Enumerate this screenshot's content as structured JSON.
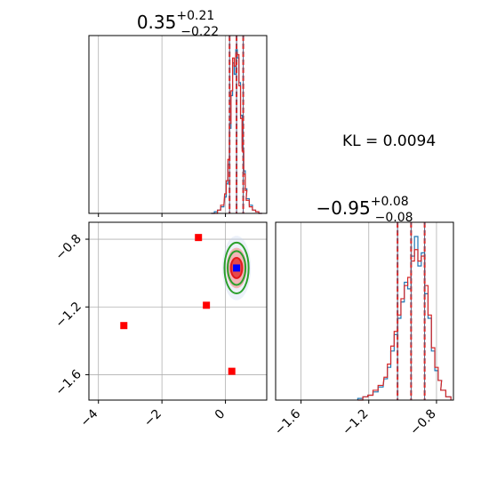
{
  "chart_data": {
    "type": "corner",
    "annotation": "KL = 0.0094",
    "colors": {
      "hist_blue": "#1f77b4",
      "hist_red": "#d62728",
      "contour_green": "#2ca02c",
      "contour_red": "#e31a1c",
      "contour_pink": "#f4a6a6",
      "truth_blue": "#0000ff",
      "prior_red": "#ff0000",
      "grid": "#b0b0b0"
    },
    "param1": {
      "title": {
        "median": "0.35",
        "plus": "+0.21",
        "minus": "−0.22"
      },
      "xlim": [
        -4.3,
        1.3
      ],
      "ticks": [
        -4,
        -2,
        0
      ],
      "tick_labels": [
        "−4",
        "−2",
        "0"
      ],
      "quantiles": [
        0.13,
        0.35,
        0.56
      ],
      "hist_centers": [
        -0.4,
        -0.3,
        -0.2,
        -0.1,
        0.0,
        0.05,
        0.1,
        0.15,
        0.2,
        0.25,
        0.3,
        0.35,
        0.4,
        0.45,
        0.5,
        0.55,
        0.6,
        0.65,
        0.7,
        0.8,
        0.9,
        1.0,
        1.1
      ],
      "hist_blue": [
        0.0,
        0.01,
        0.02,
        0.04,
        0.1,
        0.18,
        0.3,
        0.52,
        0.72,
        0.92,
        0.85,
        1.0,
        0.95,
        0.8,
        0.6,
        0.4,
        0.26,
        0.15,
        0.09,
        0.05,
        0.02,
        0.01,
        0.0
      ],
      "hist_red": [
        0.0,
        0.0,
        0.02,
        0.05,
        0.12,
        0.2,
        0.33,
        0.55,
        0.75,
        0.95,
        0.9,
        0.98,
        0.97,
        0.78,
        0.58,
        0.38,
        0.24,
        0.14,
        0.08,
        0.04,
        0.02,
        0.01,
        0.0
      ]
    },
    "param2": {
      "title": {
        "median": "−0.95",
        "plus": "+0.08",
        "minus": "−0.08"
      },
      "xlim": [
        -1.75,
        -0.7
      ],
      "ylim": [
        -1.75,
        -0.7
      ],
      "ticks": [
        -1.6,
        -1.2,
        -0.8
      ],
      "tick_labels": [
        "−1.6",
        "−1.2",
        "−0.8"
      ],
      "quantiles": [
        -1.03,
        -0.95,
        -0.87
      ],
      "hist_centers": [
        -1.25,
        -1.22,
        -1.19,
        -1.16,
        -1.13,
        -1.1,
        -1.08,
        -1.06,
        -1.04,
        -1.02,
        -1.0,
        -0.98,
        -0.96,
        -0.94,
        -0.92,
        -0.9,
        -0.88,
        -0.86,
        -0.84,
        -0.82,
        -0.8,
        -0.78,
        -0.76,
        -0.73
      ],
      "hist_blue": [
        0.01,
        0.02,
        0.03,
        0.05,
        0.08,
        0.13,
        0.2,
        0.3,
        0.4,
        0.5,
        0.6,
        0.72,
        0.68,
        0.88,
        1.0,
        0.82,
        0.9,
        0.65,
        0.5,
        0.3,
        0.18,
        0.12,
        0.06,
        0.02
      ],
      "hist_red": [
        0.0,
        0.02,
        0.03,
        0.06,
        0.09,
        0.14,
        0.22,
        0.33,
        0.42,
        0.52,
        0.62,
        0.7,
        0.75,
        0.85,
        0.92,
        0.85,
        0.88,
        0.7,
        0.52,
        0.32,
        0.2,
        0.12,
        0.06,
        0.02
      ]
    },
    "joint": {
      "truth": {
        "x": 0.35,
        "y": -0.97
      },
      "prior_points": [
        {
          "x": -0.85,
          "y": -0.79
        },
        {
          "x": -3.2,
          "y": -1.31
        },
        {
          "x": -0.6,
          "y": -1.19
        },
        {
          "x": 0.2,
          "y": -1.58
        }
      ],
      "contours": [
        {
          "level": "inner",
          "color": "contour_red",
          "rx": 0.18,
          "ry": 0.06
        },
        {
          "level": "mid",
          "color": "contour_green",
          "rx": 0.28,
          "ry": 0.1
        },
        {
          "level": "outer",
          "color": "contour_green",
          "rx": 0.38,
          "ry": 0.15
        }
      ],
      "center": {
        "x": 0.35,
        "y": -0.97
      }
    }
  }
}
